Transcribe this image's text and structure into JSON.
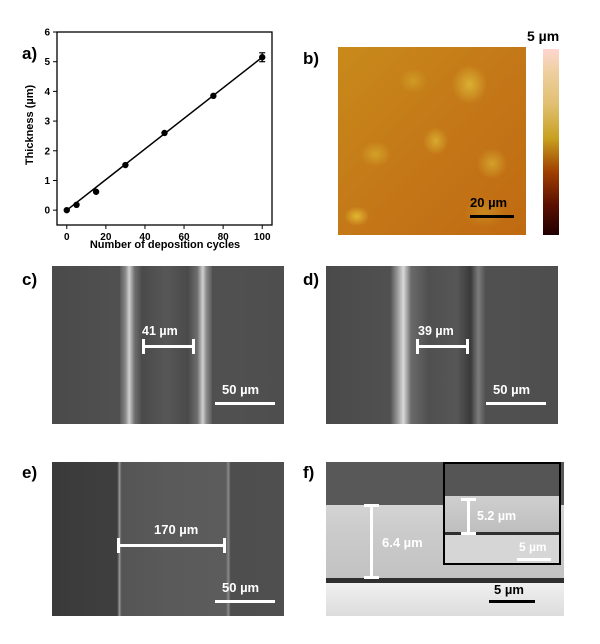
{
  "panels": {
    "a": "a)",
    "b": "b)",
    "c": "c)",
    "d": "d)",
    "e": "e)",
    "f": "f)"
  },
  "chart_data": {
    "type": "line",
    "xlabel": "Number of deposition cycles",
    "ylabel": "Thickness (µm)",
    "xlim": [
      -5,
      105
    ],
    "ylim": [
      -0.5,
      6
    ],
    "xticks": [
      0,
      20,
      40,
      60,
      80,
      100
    ],
    "yticks": [
      0,
      1,
      2,
      3,
      4,
      5,
      6
    ],
    "grid": false,
    "points": [
      {
        "x": 0,
        "y": 0.0
      },
      {
        "x": 5,
        "y": 0.18
      },
      {
        "x": 15,
        "y": 0.62
      },
      {
        "x": 30,
        "y": 1.52
      },
      {
        "x": 50,
        "y": 2.6
      },
      {
        "x": 75,
        "y": 3.85
      },
      {
        "x": 100,
        "y": 5.15
      }
    ],
    "error_last": 0.15,
    "fit": {
      "x": [
        0,
        100
      ],
      "y": [
        0.0,
        5.15
      ]
    },
    "color": "#000000"
  },
  "afm": {
    "colorbar_max": "5 µm",
    "scale": "20 µm",
    "colors": [
      "#ffd6d0",
      "#e8c070",
      "#c8a020",
      "#a04000",
      "#5a1000",
      "#200000"
    ]
  },
  "sem_c": {
    "width_label": "41 µm",
    "scale": "50 µm"
  },
  "sem_d": {
    "width_label": "39 µm",
    "scale": "50 µm"
  },
  "sem_e": {
    "width_label": "170 µm",
    "scale": "50 µm"
  },
  "sem_f": {
    "thick_label": "6.4 µm",
    "scale": "5 µm",
    "inset_label": "5.2 µm",
    "inset_scale": "5 µm"
  }
}
